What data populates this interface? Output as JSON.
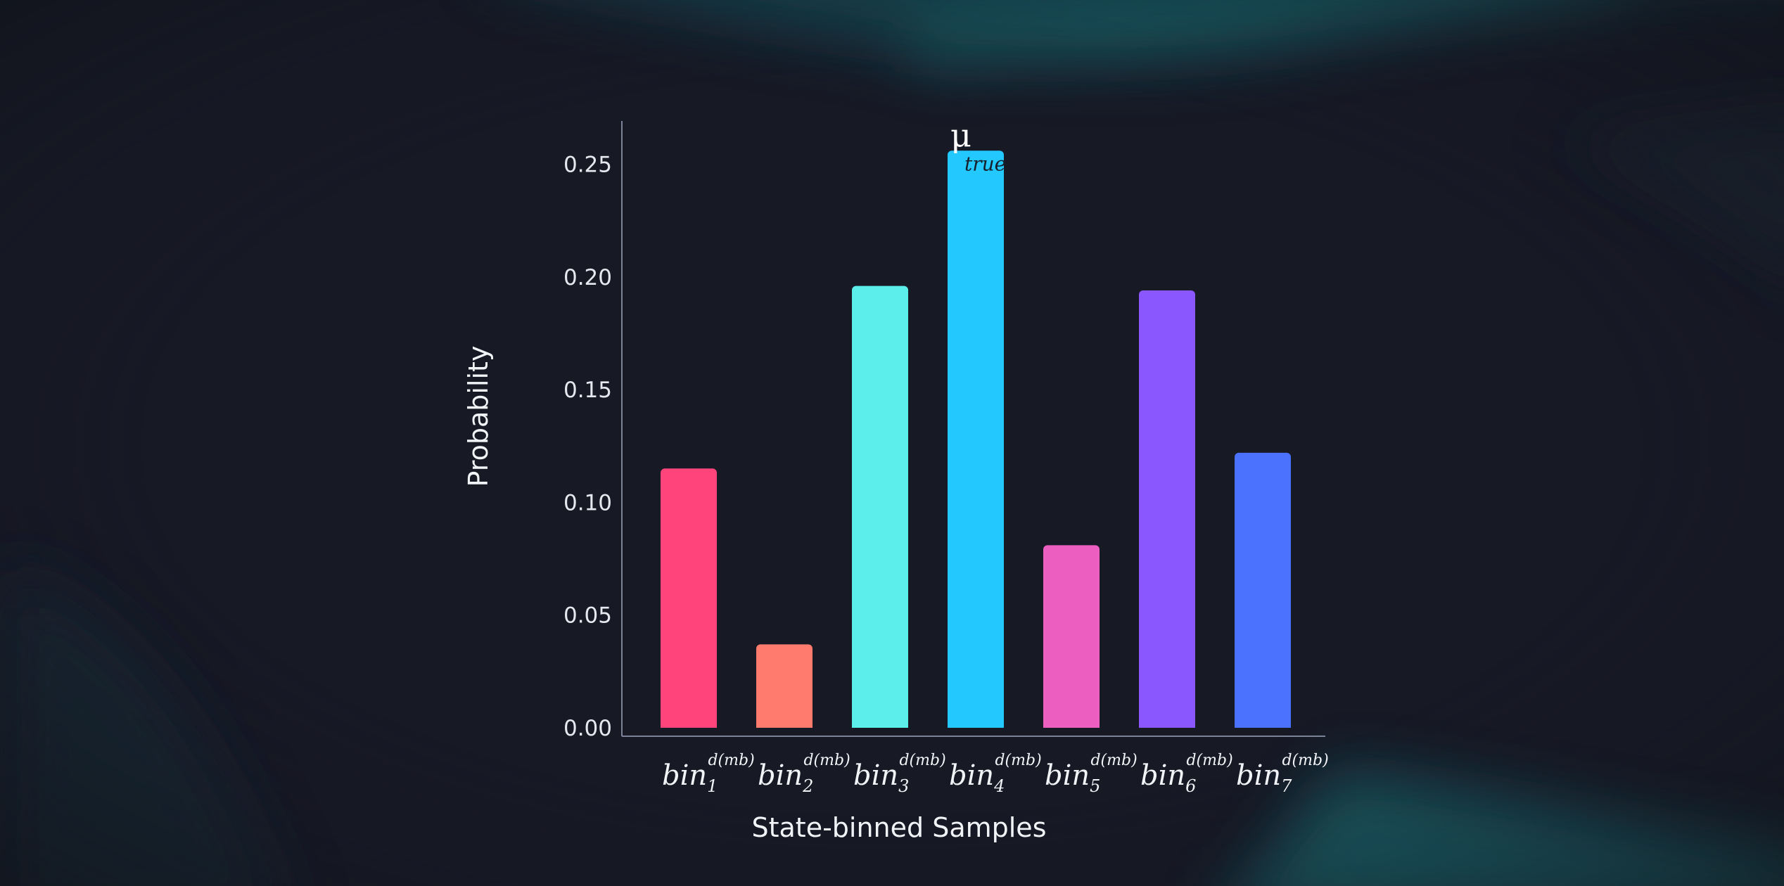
{
  "chart_data": {
    "type": "bar",
    "title": "",
    "xlabel": "State-binned Samples",
    "ylabel": "Probability",
    "ylim": [
      0,
      0.27
    ],
    "yticks": [
      0.0,
      0.05,
      0.1,
      0.15,
      0.2,
      0.25
    ],
    "ytick_labels": [
      "0.00",
      "0.05",
      "0.10",
      "0.15",
      "0.20",
      "0.25"
    ],
    "categories": [
      {
        "base": "bin",
        "sub": "1",
        "sup": "d(mb)"
      },
      {
        "base": "bin",
        "sub": "2",
        "sup": "d(mb)"
      },
      {
        "base": "bin",
        "sub": "3",
        "sup": "d(mb)"
      },
      {
        "base": "bin",
        "sub": "4",
        "sup": "d(mb)"
      },
      {
        "base": "bin",
        "sub": "5",
        "sup": "d(mb)"
      },
      {
        "base": "bin",
        "sub": "6",
        "sup": "d(mb)"
      },
      {
        "base": "bin",
        "sub": "7",
        "sup": "d(mb)"
      }
    ],
    "values": [
      0.115,
      0.037,
      0.196,
      0.256,
      0.081,
      0.194,
      0.122
    ],
    "colors": [
      "#ff447c",
      "#ff7b6e",
      "#5ceeea",
      "#22c8fe",
      "#ec5fc0",
      "#8a56fd",
      "#4a72fe"
    ],
    "annotation": {
      "category_index": 3,
      "main": "μ",
      "sub": "true"
    },
    "grid": false,
    "legend": "none"
  }
}
